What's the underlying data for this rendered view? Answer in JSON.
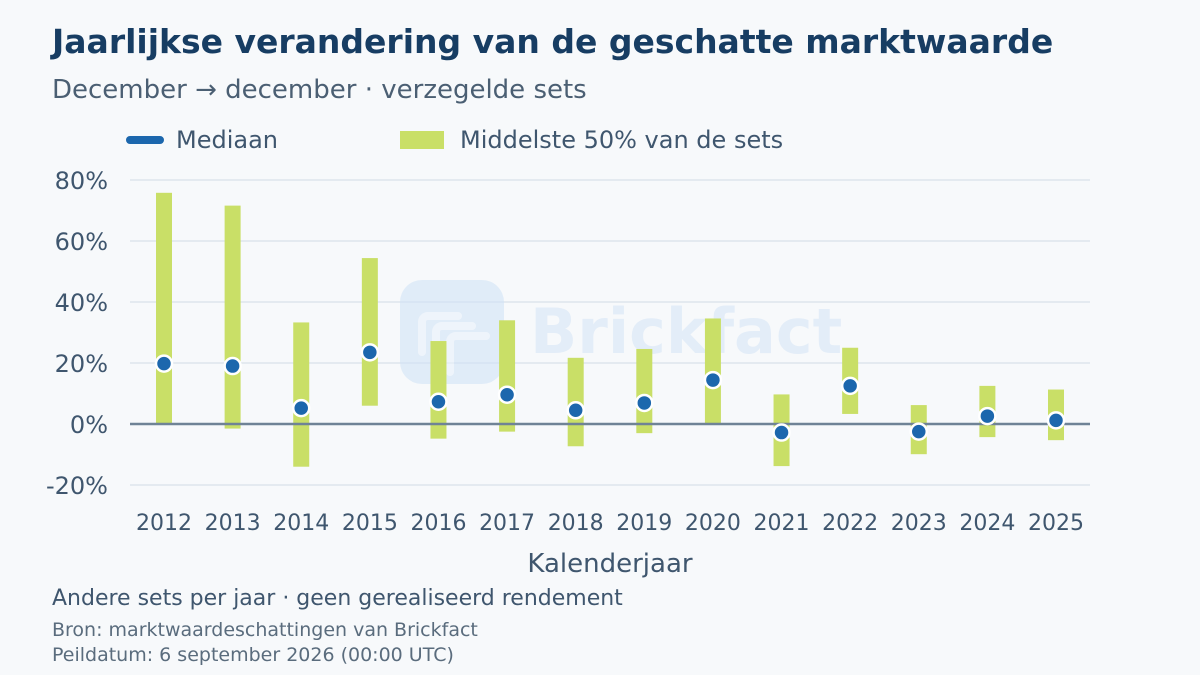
{
  "title": "Jaarlijkse verandering van de geschatte marktwaarde",
  "subtitle": "December → december · verzegelde sets",
  "watermark": "Brickfact",
  "footnote": "Andere sets per jaar · geen gerealiseerd rendement",
  "source": "Bron: marktwaardeschattingen van Brickfact",
  "as_of": "Peildatum: 6 september 2026 (00:00 UTC)",
  "colors": {
    "median": "#1c67ad",
    "iqr": "#c9df67",
    "title": "#173d63",
    "zero_line": "#6f8396",
    "grid": "#dde5ec"
  },
  "chart_data": {
    "type": "bar",
    "xlabel": "Kalenderjaar",
    "ylabel": "",
    "ylim": [
      -25,
      85
    ],
    "yticks": [
      -20,
      0,
      20,
      40,
      60,
      80
    ],
    "ytick_labels": [
      "-20%",
      "0%",
      "20%",
      "40%",
      "60%",
      "80%"
    ],
    "grid": true,
    "legend": {
      "position": "top",
      "entries": [
        "Mediaan",
        "Middelste 50% van de sets"
      ]
    },
    "categories": [
      "2012",
      "2013",
      "2014",
      "2015",
      "2016",
      "2017",
      "2018",
      "2019",
      "2020",
      "2021",
      "2022",
      "2023",
      "2024",
      "2025"
    ],
    "series": [
      {
        "name": "Mediaan",
        "kind": "point",
        "values": [
          19.8,
          19.0,
          5.2,
          23.5,
          7.3,
          9.6,
          4.5,
          6.9,
          14.4,
          -2.8,
          12.5,
          -2.5,
          2.6,
          1.2
        ]
      },
      {
        "name": "Middelste 50% van de sets",
        "kind": "range",
        "low": [
          0,
          -1.5,
          -14.0,
          6.0,
          -4.8,
          -2.5,
          -7.3,
          -3.0,
          0,
          -13.8,
          3.3,
          -9.9,
          -4.3,
          -5.3
        ],
        "high": [
          75.8,
          71.6,
          33.3,
          54.4,
          27.2,
          34.0,
          21.7,
          24.6,
          34.6,
          9.7,
          25.0,
          6.2,
          12.5,
          11.3
        ]
      }
    ]
  }
}
